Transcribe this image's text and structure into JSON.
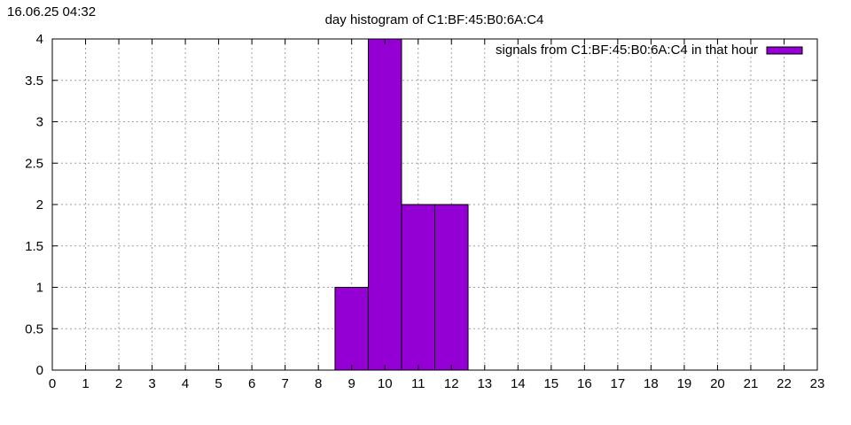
{
  "timestamp": "16.06.25 04:32",
  "chart_data": {
    "type": "bar",
    "title": "day histogram of C1:BF:45:B0:6A:C4",
    "xlabel": "",
    "ylabel": "",
    "xlim": [
      0,
      23
    ],
    "ylim": [
      0,
      4
    ],
    "x_ticks": [
      "0",
      "1",
      "2",
      "3",
      "4",
      "5",
      "6",
      "7",
      "8",
      "9",
      "10",
      "11",
      "12",
      "13",
      "14",
      "15",
      "16",
      "17",
      "18",
      "19",
      "20",
      "21",
      "22",
      "23"
    ],
    "y_ticks": [
      "0",
      "0.5",
      "1",
      "1.5",
      "2",
      "2.5",
      "3",
      "3.5",
      "4"
    ],
    "grid": true,
    "legend_position": "top-right",
    "series": [
      {
        "name": "signals from C1:BF:45:B0:6A:C4 in that hour",
        "color": "#9400d3",
        "x": [
          9,
          10,
          11,
          12
        ],
        "values": [
          1,
          4,
          2,
          2
        ]
      }
    ]
  }
}
